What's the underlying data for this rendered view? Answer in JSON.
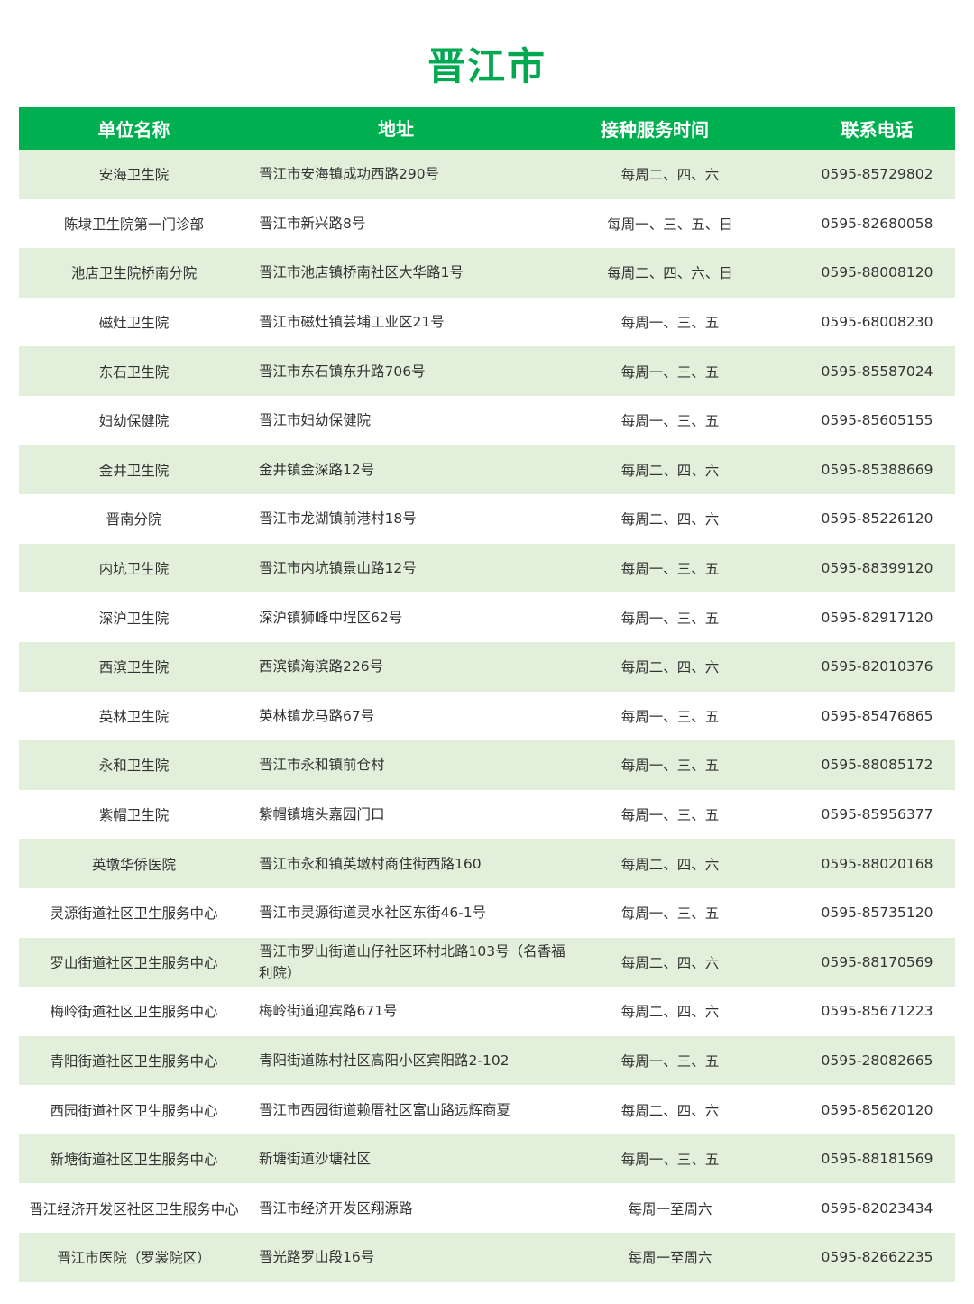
{
  "title": "晋江市",
  "colors": {
    "header_bg": "#00b050",
    "title": "#00a94f",
    "stripe": "#e2efda"
  },
  "headers": [
    "单位名称",
    "地址",
    "接种服务时间",
    "联系电话"
  ],
  "rows": [
    [
      "安海卫生院",
      "晋江市安海镇成功西路290号",
      "每周二、四、六",
      "0595-85729802"
    ],
    [
      "陈埭卫生院第一门诊部",
      "晋江市新兴路8号",
      "每周一、三、五、日",
      "0595-82680058"
    ],
    [
      "池店卫生院桥南分院",
      "晋江市池店镇桥南社区大华路1号",
      "每周二、四、六、日",
      "0595-88008120"
    ],
    [
      "磁灶卫生院",
      "晋江市磁灶镇芸埔工业区21号",
      "每周一、三、五",
      "0595-68008230"
    ],
    [
      "东石卫生院",
      "晋江市东石镇东升路706号",
      "每周一、三、五",
      "0595-85587024"
    ],
    [
      "妇幼保健院",
      "晋江市妇幼保健院",
      "每周一、三、五",
      "0595-85605155"
    ],
    [
      "金井卫生院",
      "金井镇金深路12号",
      "每周二、四、六",
      "0595-85388669"
    ],
    [
      "晋南分院",
      "晋江市龙湖镇前港村18号",
      "每周二、四、六",
      "0595-85226120"
    ],
    [
      "内坑卫生院",
      "晋江市内坑镇景山路12号",
      "每周一、三、五",
      "0595-88399120"
    ],
    [
      "深沪卫生院",
      "深沪镇狮峰中埕区62号",
      "每周一、三、五",
      "0595-82917120"
    ],
    [
      "西滨卫生院",
      "西滨镇海滨路226号",
      "每周二、四、六",
      "0595-82010376"
    ],
    [
      "英林卫生院",
      "英林镇龙马路67号",
      "每周一、三、五",
      "0595-85476865"
    ],
    [
      "永和卫生院",
      "晋江市永和镇前仓村",
      "每周一、三、五",
      "0595-88085172"
    ],
    [
      "紫帽卫生院",
      "紫帽镇塘头嘉园门口",
      "每周一、三、五",
      "0595-85956377"
    ],
    [
      "英墩华侨医院",
      "晋江市永和镇英墩村商住街西路160",
      "每周二、四、六",
      "0595-88020168"
    ],
    [
      "灵源街道社区卫生服务中心",
      "晋江市灵源街道灵水社区东街46-1号",
      "每周一、三、五",
      "0595-85735120"
    ],
    [
      "罗山街道社区卫生服务中心",
      "晋江市罗山街道山仔社区环村北路103号（名香福利院）",
      "每周二、四、六",
      "0595-88170569"
    ],
    [
      "梅岭街道社区卫生服务中心",
      "梅岭街道迎宾路671号",
      "每周二、四、六",
      "0595-85671223"
    ],
    [
      "青阳街道社区卫生服务中心",
      "青阳街道陈村社区高阳小区宾阳路2-102",
      "每周一、三、五",
      "0595-28082665"
    ],
    [
      "西园街道社区卫生服务中心",
      "晋江市西园街道赖厝社区富山路远辉商夏",
      "每周二、四、六",
      "0595-85620120"
    ],
    [
      "新塘街道社区卫生服务中心",
      "新塘街道沙塘社区",
      "每周一、三、五",
      "0595-88181569"
    ],
    [
      "晋江经济开发区社区卫生服务中心",
      "晋江市经济开发区翔源路",
      "每周一至周六",
      "0595-82023434"
    ],
    [
      "晋江市医院（罗裳院区）",
      "晋光路罗山段16号",
      "每周一至周六",
      "0595-82662235"
    ]
  ]
}
